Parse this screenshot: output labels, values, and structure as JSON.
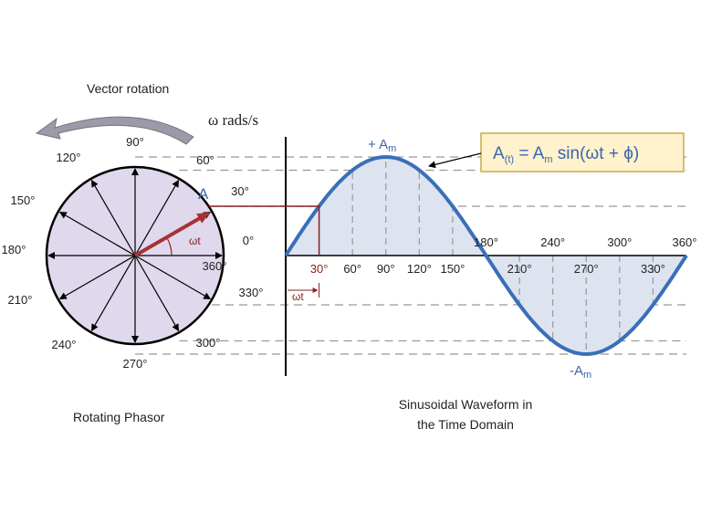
{
  "title_left": "Vector rotation",
  "angular_speed": "ω rads/s",
  "phasor": {
    "label": "A",
    "angle_label": "ωt",
    "degree_labels": [
      "0°",
      "30°",
      "60°",
      "90°",
      "120°",
      "150°",
      "180°",
      "210°",
      "240°",
      "270°",
      "300°",
      "330°",
      "360°"
    ]
  },
  "waveform": {
    "peak_label": {
      "main": "+ A",
      "sub": "m"
    },
    "trough_label": {
      "main": "-A",
      "sub": "m"
    },
    "time_label": "ωt",
    "axis_labels": [
      "30°",
      "60°",
      "90°",
      "120°",
      "150°",
      "180°",
      "210°",
      "240°",
      "270°",
      "300°",
      "330°",
      "360°"
    ]
  },
  "formula": {
    "a": "A",
    "a_sub": "(t)",
    "eq": " = A",
    "m_sub": "m",
    "rest": " sin(ωt + ϕ)"
  },
  "captions": {
    "left": "Rotating Phasor",
    "right_line1": "Sinusoidal Waveform in",
    "right_line2": "the Time Domain"
  }
}
